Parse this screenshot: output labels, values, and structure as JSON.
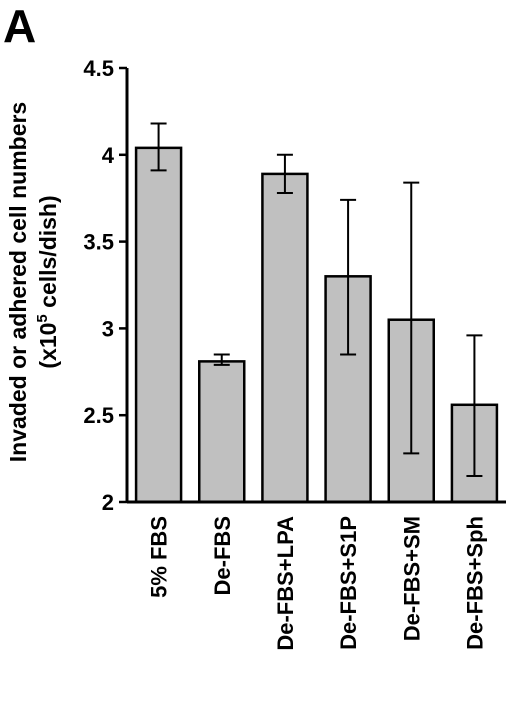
{
  "panel_label": "A",
  "chart_data": {
    "type": "bar",
    "title": "",
    "xlabel": "",
    "ylabel_line1": "Invaded or adhered cell numbers",
    "ylabel_line2_prefix": "(x10",
    "ylabel_line2_sup": "5",
    "ylabel_line2_suffix": " cells/dish)",
    "ylim": [
      2,
      4.5
    ],
    "yticks": [
      2,
      2.5,
      3,
      3.5,
      4,
      4.5
    ],
    "ytick_labels": [
      "2",
      "2.5",
      "3",
      "3.5",
      "4",
      "4.5"
    ],
    "categories": [
      "5% FBS",
      "De-FBS",
      "De-FBS+LPA",
      "De-FBS+S1P",
      "De-FBS+SM",
      "De-FBS+Sph"
    ],
    "values": [
      4.04,
      2.81,
      3.89,
      3.3,
      3.05,
      2.56
    ],
    "error_low": [
      3.91,
      2.79,
      3.78,
      2.85,
      2.28,
      2.15
    ],
    "error_high": [
      4.18,
      2.85,
      4.0,
      3.74,
      3.84,
      2.96
    ],
    "bar_color": "#c0c0c0",
    "grid": false,
    "legend": "none"
  }
}
